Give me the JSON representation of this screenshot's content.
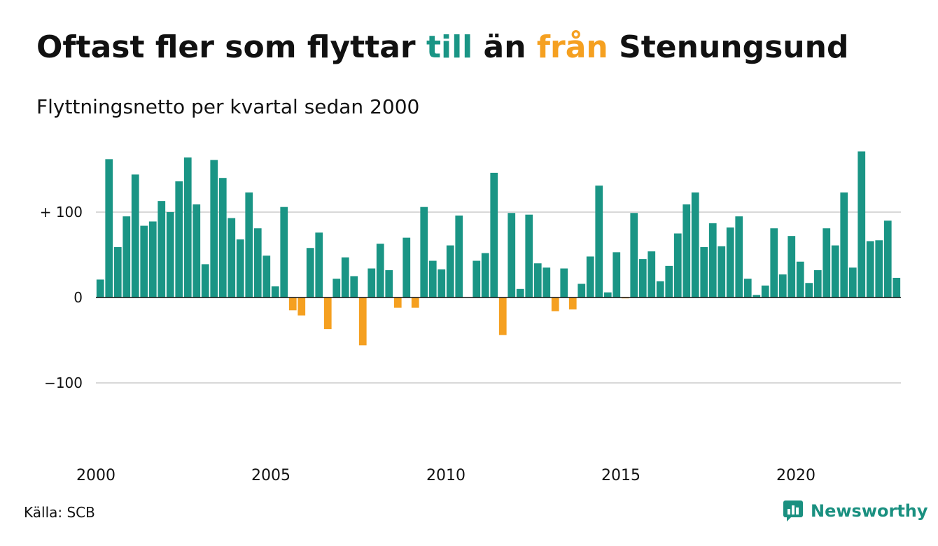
{
  "title": {
    "part1": "Oftast fler som flyttar ",
    "till": "till",
    "part2": " än ",
    "fran": "från",
    "part3": " Stenungsund"
  },
  "subtitle": "Flyttningsnetto per kvartal sedan 2000",
  "source": "Källa: SCB",
  "logo": {
    "text": "Newsworthy",
    "icon": "chart-bubble-icon"
  },
  "colors": {
    "positive": "#1a9585",
    "negative": "#f5a020",
    "grid": "#d8d8d8",
    "axis": "#111111"
  },
  "chart_data": {
    "type": "bar",
    "x_start": 2000,
    "periods_per_year": 4,
    "values": [
      21,
      162,
      59,
      95,
      144,
      84,
      89,
      113,
      100,
      136,
      164,
      109,
      39,
      161,
      140,
      93,
      68,
      123,
      81,
      49,
      13,
      106,
      -15,
      -21,
      58,
      76,
      -37,
      22,
      47,
      25,
      -56,
      34,
      63,
      32,
      -12,
      70,
      -12,
      106,
      43,
      33,
      61,
      96,
      0,
      43,
      52,
      146,
      -44,
      99,
      10,
      97,
      40,
      35,
      -16,
      34,
      -14,
      16,
      48,
      131,
      6,
      53,
      -1,
      99,
      45,
      54,
      19,
      37,
      75,
      109,
      123,
      59,
      87,
      60,
      82,
      95,
      22,
      3,
      14,
      81,
      27,
      72,
      42,
      17,
      32,
      81,
      61,
      123,
      35,
      171,
      66,
      67,
      90,
      23
    ],
    "x_ticks": [
      "2000",
      "2005",
      "2010",
      "2015",
      "2020"
    ],
    "y_ticks": [
      {
        "value": 100,
        "label": "+ 100"
      },
      {
        "value": 0,
        "label": "0"
      },
      {
        "value": -100,
        "label": "−100"
      }
    ],
    "ylim": [
      -175,
      175
    ],
    "grid": true
  }
}
